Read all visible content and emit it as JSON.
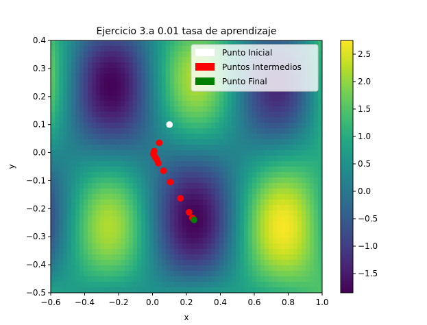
{
  "chart_data": {
    "type": "heatmap",
    "title": "Ejercicio 3.a 0.01 tasa de aprendizaje",
    "xlabel": "x",
    "ylabel": "y",
    "xlim": [
      -0.6,
      1.0
    ],
    "ylim": [
      -0.5,
      0.4
    ],
    "xticks": [
      "−0.6",
      "−0.4",
      "−0.2",
      "0.0",
      "0.2",
      "0.4",
      "0.6",
      "0.8",
      "1.0"
    ],
    "yticks": [
      "−0.5",
      "−0.4",
      "−0.3",
      "−0.2",
      "−0.1",
      "0.0",
      "0.1",
      "0.2",
      "0.3",
      "0.4"
    ],
    "colorbar": {
      "colormap": "viridis",
      "range": [
        -1.85,
        2.75
      ],
      "ticks": [
        "−1.5",
        "−1.0",
        "−0.5",
        "0.0",
        "0.5",
        "1.0",
        "1.5",
        "2.0",
        "2.5"
      ]
    },
    "surface": "sin(2*pi*x) * cos(2*pi*y) + x^2 + y^2 ... approx",
    "legend": {
      "position": "upper-right",
      "entries": [
        {
          "label": "Punto Inicial",
          "color": "#ffffff"
        },
        {
          "label": "Puntos Intermedios",
          "color": "#ff0000"
        },
        {
          "label": "Punto Final",
          "color": "#008000"
        }
      ]
    },
    "series": [
      {
        "name": "Punto Inicial",
        "color": "#ffffff",
        "points": [
          [
            0.1,
            0.1
          ]
        ]
      },
      {
        "name": "Puntos Intermedios",
        "color": "#ff0000",
        "points": [
          [
            0.04,
            0.035
          ],
          [
            0.01,
            0.005
          ],
          [
            0.005,
            -0.005
          ],
          [
            0.015,
            -0.015
          ],
          [
            0.025,
            -0.025
          ],
          [
            0.035,
            -0.038
          ],
          [
            0.065,
            -0.065
          ],
          [
            0.105,
            -0.105
          ],
          [
            0.165,
            -0.163
          ],
          [
            0.215,
            -0.213
          ],
          [
            0.235,
            -0.233
          ],
          [
            0.243,
            -0.238
          ]
        ]
      },
      {
        "name": "Punto Final",
        "color": "#008000",
        "points": [
          [
            0.245,
            -0.24
          ]
        ]
      }
    ]
  }
}
